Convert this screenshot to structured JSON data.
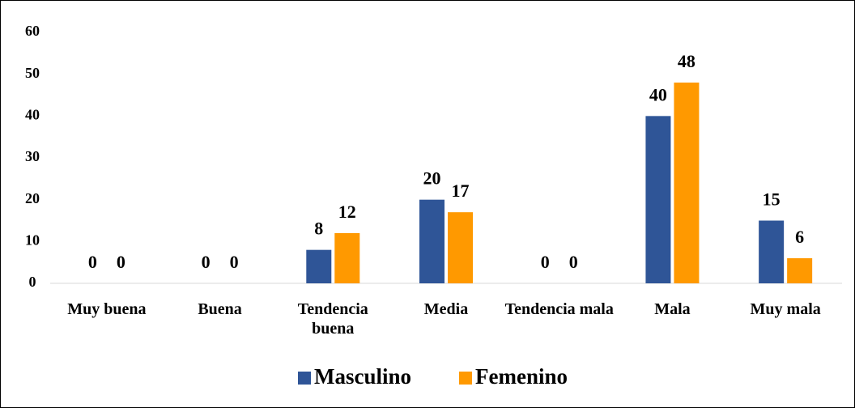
{
  "chart_data": {
    "type": "bar",
    "categories": [
      "Muy buena",
      "Buena",
      "Tendencia buena",
      "Media",
      "Tendencia mala",
      "Mala",
      "Muy mala"
    ],
    "series": [
      {
        "name": "Masculino",
        "color": "#2f5597",
        "values": [
          0,
          0,
          8,
          20,
          0,
          40,
          15
        ]
      },
      {
        "name": "Femenino",
        "color": "#ff9900",
        "values": [
          0,
          0,
          12,
          17,
          0,
          48,
          6
        ]
      }
    ],
    "ylim": [
      0,
      60
    ],
    "yticks": [
      0,
      10,
      20,
      30,
      40,
      50,
      60
    ],
    "grid": false,
    "legend": "bottom"
  }
}
